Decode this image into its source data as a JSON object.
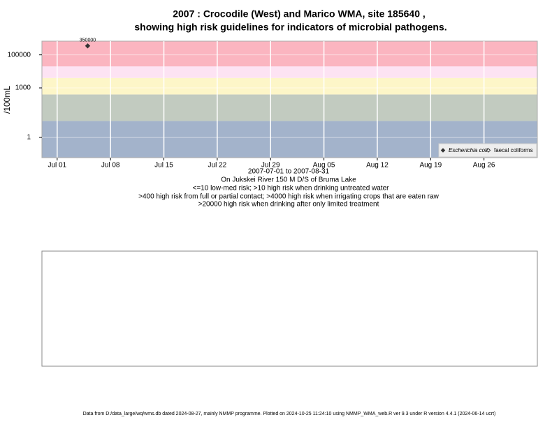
{
  "chart_data": {
    "type": "scatter",
    "title": [
      "2007 : Crocodile (West) and Marico WMA, site 185640 ,",
      "showing high risk guidelines for indicators of microbial pathogens."
    ],
    "ylabel": "/100mL",
    "xlabel": "2007-07-01 to 2007-08-31",
    "notes": [
      "On Jukskei River 150 M D/S of Bruma Lake",
      "<=10 low-med risk; >10 high risk when drinking untreated water",
      ">400 high risk from full or partial contact; >4000 high risk when irrigating crops that are eaten raw",
      ">20000 high risk when drinking after only limited treatment"
    ],
    "log_y": true,
    "ylim": [
      0.06,
      676000
    ],
    "yticks": [
      1,
      1000,
      100000
    ],
    "xlim": [
      "2007-06-29",
      "2007-09-02"
    ],
    "xticks": [
      {
        "value": "2007-07-01",
        "label": "Jul 01"
      },
      {
        "value": "2007-07-08",
        "label": "Jul 08"
      },
      {
        "value": "2007-07-15",
        "label": "Jul 15"
      },
      {
        "value": "2007-07-22",
        "label": "Jul 22"
      },
      {
        "value": "2007-07-29",
        "label": "Jul 29"
      },
      {
        "value": "2007-08-05",
        "label": "Aug 05"
      },
      {
        "value": "2007-08-12",
        "label": "Aug 12"
      },
      {
        "value": "2007-08-19",
        "label": "Aug 19"
      },
      {
        "value": "2007-08-26",
        "label": "Aug 26"
      }
    ],
    "thresholds": [
      10,
      400,
      4000,
      20000
    ],
    "band_colors": [
      "#a3b3cb",
      "#c2cbc0",
      "#fdf6c8",
      "#fde3f3",
      "#fbb5c0"
    ],
    "grid": true,
    "legend": "bottom-right",
    "series": [
      {
        "name": "Escherichia coli",
        "color": "#333333",
        "filled": true,
        "x": [
          "2007-07-05"
        ],
        "values": [
          350000
        ]
      },
      {
        "name": "faecal coliforms",
        "color": "#333333",
        "filled": false,
        "x": [],
        "values": []
      }
    ],
    "footer": "Data from D:/data_large/wq/wms.db dated 2024-08-27, mainly NMMP programme. Plotted on 2024-10-25 11:24:10 using NMMP_WMA_web.R ver 9.3 under R version 4.4.1 (2024-06-14 ucrt)"
  }
}
